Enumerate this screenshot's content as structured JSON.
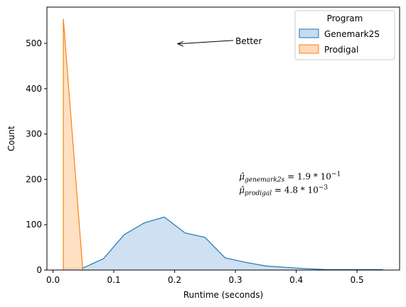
{
  "chart_data": {
    "type": "area",
    "xlabel": "Runtime (seconds)",
    "ylabel": "Count",
    "xlim": [
      -0.01,
      0.57
    ],
    "ylim": [
      0,
      580
    ],
    "xticks": [
      0.0,
      0.1,
      0.2,
      0.3,
      0.4,
      0.5
    ],
    "xtick_labels": [
      "0.0",
      "0.1",
      "0.2",
      "0.3",
      "0.4",
      "0.5"
    ],
    "yticks": [
      0,
      100,
      200,
      300,
      400,
      500
    ],
    "ytick_labels": [
      "0",
      "100",
      "200",
      "300",
      "400",
      "500"
    ],
    "grid": false,
    "legend": {
      "title": "Program",
      "placement": "top-right"
    },
    "series": [
      {
        "name": "Genemark2S",
        "color": "#1f77b4",
        "fill": "#c6dbef",
        "x": [
          0.017,
          0.05,
          0.083,
          0.117,
          0.15,
          0.183,
          0.217,
          0.25,
          0.283,
          0.317,
          0.35,
          0.383,
          0.417,
          0.45,
          0.483,
          0.517,
          0.543
        ],
        "y": [
          3,
          5,
          25,
          78,
          104,
          117,
          82,
          72,
          27,
          17,
          9,
          6,
          3,
          1,
          1,
          1,
          1
        ]
      },
      {
        "name": "Prodigal",
        "color": "#ff7f0e",
        "fill": "#ffdab9",
        "x": [
          0.017,
          0.049
        ],
        "y": [
          554,
          0
        ]
      }
    ],
    "annotations": {
      "arrow_text": "Better",
      "arrow_text_pos": [
        0.3,
        505
      ],
      "arrow_head_pos": [
        0.205,
        499
      ]
    },
    "math_lines": [
      {
        "label": "μ̂",
        "sub": "genemark2s",
        "mantissa": " = 1.9 * 10",
        "exp": "−1",
        "pos": [
          0.306,
          200
        ]
      },
      {
        "label": "μ̂",
        "sub": "prodigal",
        "mantissa": " = 4.8 * 10",
        "exp": "−3",
        "pos": [
          0.306,
          170
        ]
      }
    ]
  }
}
